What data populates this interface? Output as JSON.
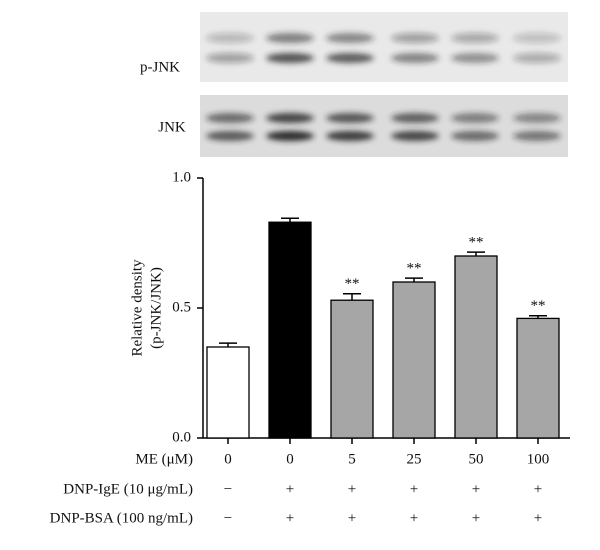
{
  "blot_labels": [
    "p-JNK",
    "JNK"
  ],
  "chart_data": {
    "type": "bar",
    "y_label": [
      "Relative density",
      "(p-JNK/JNK)"
    ],
    "x_label": "ME (μM)",
    "categories": [
      "0",
      "0",
      "5",
      "25",
      "50",
      "100"
    ],
    "values": [
      0.35,
      0.83,
      0.53,
      0.6,
      0.7,
      0.46
    ],
    "errors": [
      0.015,
      0.015,
      0.025,
      0.015,
      0.015,
      0.01
    ],
    "colors": [
      "#ffffff",
      "#000000",
      "#a6a6a6",
      "#a6a6a6",
      "#a6a6a6",
      "#a6a6a6"
    ],
    "annotations": [
      null,
      null,
      "**",
      "**",
      "**",
      "**"
    ],
    "ylim": [
      0,
      1
    ],
    "yticks": [
      {
        "value": 0,
        "label": "0.0"
      },
      {
        "value": 0.5,
        "label": "0.5"
      },
      {
        "value": 1,
        "label": "1.0"
      }
    ],
    "rows": [
      {
        "label": "DNP-IgE (10 μg/mL)",
        "cells": [
          "−",
          "+",
          "+",
          "+",
          "+",
          "+"
        ]
      },
      {
        "label": "DNP-BSA (100 ng/mL)",
        "cells": [
          "−",
          "+",
          "+",
          "+",
          "+",
          "+"
        ]
      }
    ]
  }
}
